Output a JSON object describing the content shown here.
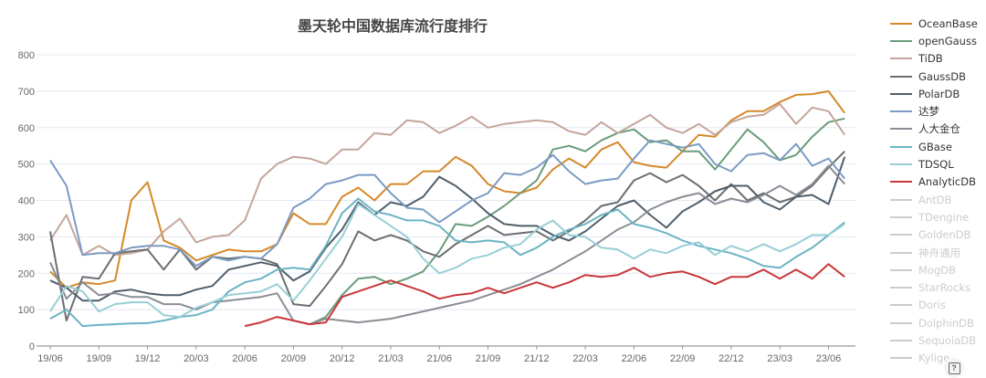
{
  "chart_data": {
    "type": "line",
    "title": "墨天轮中国数据库流行度排行",
    "ylim": [
      0,
      800
    ],
    "yticks": [
      "0",
      "100",
      "200",
      "300",
      "400",
      "500",
      "600",
      "700",
      "800"
    ],
    "grid": true,
    "legend_position": "right",
    "x": [
      "19/06",
      "19/07",
      "19/08",
      "19/09",
      "19/10",
      "19/11",
      "19/12",
      "20/01",
      "20/02",
      "20/03",
      "20/04",
      "20/05",
      "20/06",
      "20/07",
      "20/08",
      "20/09",
      "20/10",
      "20/11",
      "20/12",
      "21/01",
      "21/02",
      "21/03",
      "21/04",
      "21/05",
      "21/06",
      "21/07",
      "21/08",
      "21/09",
      "21/10",
      "21/11",
      "21/12",
      "22/01",
      "22/02",
      "22/03",
      "22/04",
      "22/05",
      "22/06",
      "22/07",
      "22/08",
      "22/09",
      "22/10",
      "22/11",
      "22/12",
      "23/01",
      "23/02",
      "23/03",
      "23/04",
      "23/05",
      "23/06",
      "23/07"
    ],
    "xticks": [
      "19/06",
      "19/09",
      "19/12",
      "20/03",
      "20/06",
      "20/09",
      "20/12",
      "21/03",
      "21/06",
      "21/09",
      "21/12",
      "22/03",
      "22/06",
      "22/09",
      "22/12",
      "23/03",
      "23/06"
    ],
    "series": [
      {
        "name": "OceanBase",
        "color": "#d4892a",
        "values": [
          205,
          160,
          175,
          170,
          180,
          400,
          450,
          290,
          270,
          235,
          250,
          265,
          260,
          260,
          280,
          365,
          335,
          335,
          410,
          435,
          400,
          445,
          445,
          480,
          480,
          520,
          495,
          445,
          425,
          420,
          435,
          485,
          515,
          490,
          540,
          560,
          505,
          495,
          490,
          535,
          580,
          575,
          620,
          645,
          645,
          670,
          690,
          692,
          700,
          640
        ]
      },
      {
        "name": "openGauss",
        "color": "#6a9c7a",
        "values": [
          null,
          null,
          null,
          null,
          null,
          null,
          null,
          null,
          null,
          null,
          null,
          null,
          null,
          null,
          null,
          null,
          60,
          80,
          140,
          185,
          190,
          170,
          185,
          205,
          260,
          335,
          330,
          355,
          385,
          420,
          455,
          540,
          550,
          535,
          565,
          585,
          595,
          560,
          565,
          535,
          535,
          485,
          540,
          595,
          560,
          510,
          525,
          575,
          615,
          625
        ]
      },
      {
        "name": "TiDB",
        "color": "#c4a59a",
        "values": [
          290,
          360,
          250,
          275,
          250,
          255,
          265,
          315,
          350,
          285,
          300,
          305,
          345,
          460,
          500,
          520,
          515,
          500,
          540,
          540,
          585,
          580,
          620,
          615,
          585,
          605,
          630,
          600,
          610,
          615,
          620,
          615,
          590,
          580,
          615,
          585,
          610,
          635,
          600,
          585,
          610,
          580,
          615,
          630,
          635,
          665,
          610,
          655,
          645,
          580
        ]
      },
      {
        "name": "GaussDB",
        "color": "#6b6e70",
        "values": [
          315,
          70,
          190,
          185,
          255,
          260,
          265,
          210,
          265,
          210,
          245,
          240,
          245,
          240,
          225,
          115,
          110,
          165,
          225,
          315,
          290,
          305,
          290,
          260,
          245,
          280,
          305,
          330,
          305,
          310,
          315,
          290,
          315,
          345,
          385,
          395,
          455,
          475,
          450,
          470,
          440,
          400,
          445,
          400,
          420,
          395,
          410,
          440,
          490,
          535
        ]
      },
      {
        "name": "PolarDB",
        "color": "#4e5e6b",
        "values": [
          180,
          160,
          125,
          125,
          150,
          155,
          145,
          140,
          140,
          155,
          165,
          210,
          220,
          230,
          220,
          180,
          205,
          270,
          320,
          395,
          360,
          395,
          385,
          410,
          465,
          440,
          405,
          365,
          335,
          330,
          330,
          305,
          290,
          315,
          350,
          385,
          400,
          360,
          325,
          370,
          395,
          425,
          440,
          440,
          395,
          375,
          410,
          415,
          390,
          520
        ]
      },
      {
        "name": "达梦",
        "color": "#7b9bc4",
        "values": [
          510,
          440,
          250,
          255,
          255,
          270,
          275,
          275,
          265,
          220,
          245,
          235,
          245,
          240,
          280,
          380,
          405,
          445,
          455,
          470,
          470,
          420,
          380,
          375,
          340,
          370,
          400,
          420,
          475,
          470,
          490,
          525,
          480,
          445,
          455,
          460,
          515,
          565,
          555,
          545,
          555,
          500,
          480,
          525,
          530,
          510,
          555,
          495,
          515,
          460
        ]
      },
      {
        "name": "人大金仓",
        "color": "#8a8d94",
        "values": [
          230,
          130,
          175,
          140,
          145,
          135,
          135,
          115,
          115,
          100,
          120,
          125,
          130,
          135,
          145,
          70,
          60,
          75,
          70,
          65,
          70,
          75,
          85,
          95,
          105,
          115,
          125,
          140,
          155,
          170,
          190,
          210,
          235,
          260,
          290,
          320,
          340,
          375,
          395,
          410,
          420,
          390,
          405,
          395,
          415,
          440,
          415,
          445,
          495,
          445
        ]
      },
      {
        "name": "GBase",
        "color": "#6bb3c4",
        "values": [
          75,
          100,
          55,
          58,
          60,
          62,
          63,
          70,
          80,
          85,
          100,
          150,
          175,
          185,
          210,
          215,
          210,
          275,
          365,
          405,
          370,
          360,
          345,
          345,
          330,
          290,
          285,
          290,
          285,
          250,
          270,
          300,
          320,
          335,
          360,
          375,
          335,
          325,
          310,
          290,
          275,
          265,
          255,
          240,
          220,
          215,
          245,
          270,
          305,
          340
        ]
      },
      {
        "name": "TDSQL",
        "color": "#98cfd6",
        "values": [
          95,
          165,
          150,
          95,
          115,
          120,
          120,
          85,
          80,
          105,
          120,
          140,
          145,
          150,
          170,
          125,
          180,
          240,
          300,
          390,
          360,
          330,
          300,
          240,
          200,
          215,
          240,
          250,
          270,
          280,
          320,
          345,
          305,
          300,
          270,
          265,
          240,
          265,
          255,
          275,
          285,
          250,
          275,
          260,
          280,
          260,
          280,
          305,
          305,
          335
        ]
      },
      {
        "name": "AnalyticDB",
        "color": "#c9373a",
        "values": [
          null,
          null,
          null,
          null,
          null,
          null,
          null,
          null,
          null,
          null,
          null,
          null,
          55,
          65,
          80,
          70,
          60,
          65,
          135,
          150,
          165,
          180,
          165,
          150,
          130,
          140,
          145,
          160,
          145,
          160,
          175,
          160,
          175,
          195,
          190,
          195,
          215,
          190,
          200,
          205,
          190,
          170,
          190,
          190,
          210,
          185,
          210,
          185,
          225,
          190
        ]
      }
    ],
    "hidden_series": [
      "AntDB",
      "TDengine",
      "GoldenDB",
      "神舟通用",
      "MogDB",
      "StarRocks",
      "Doris",
      "DolphinDB",
      "SequoiaDB",
      "Kylige"
    ],
    "inactive_color": "#cccccc"
  }
}
